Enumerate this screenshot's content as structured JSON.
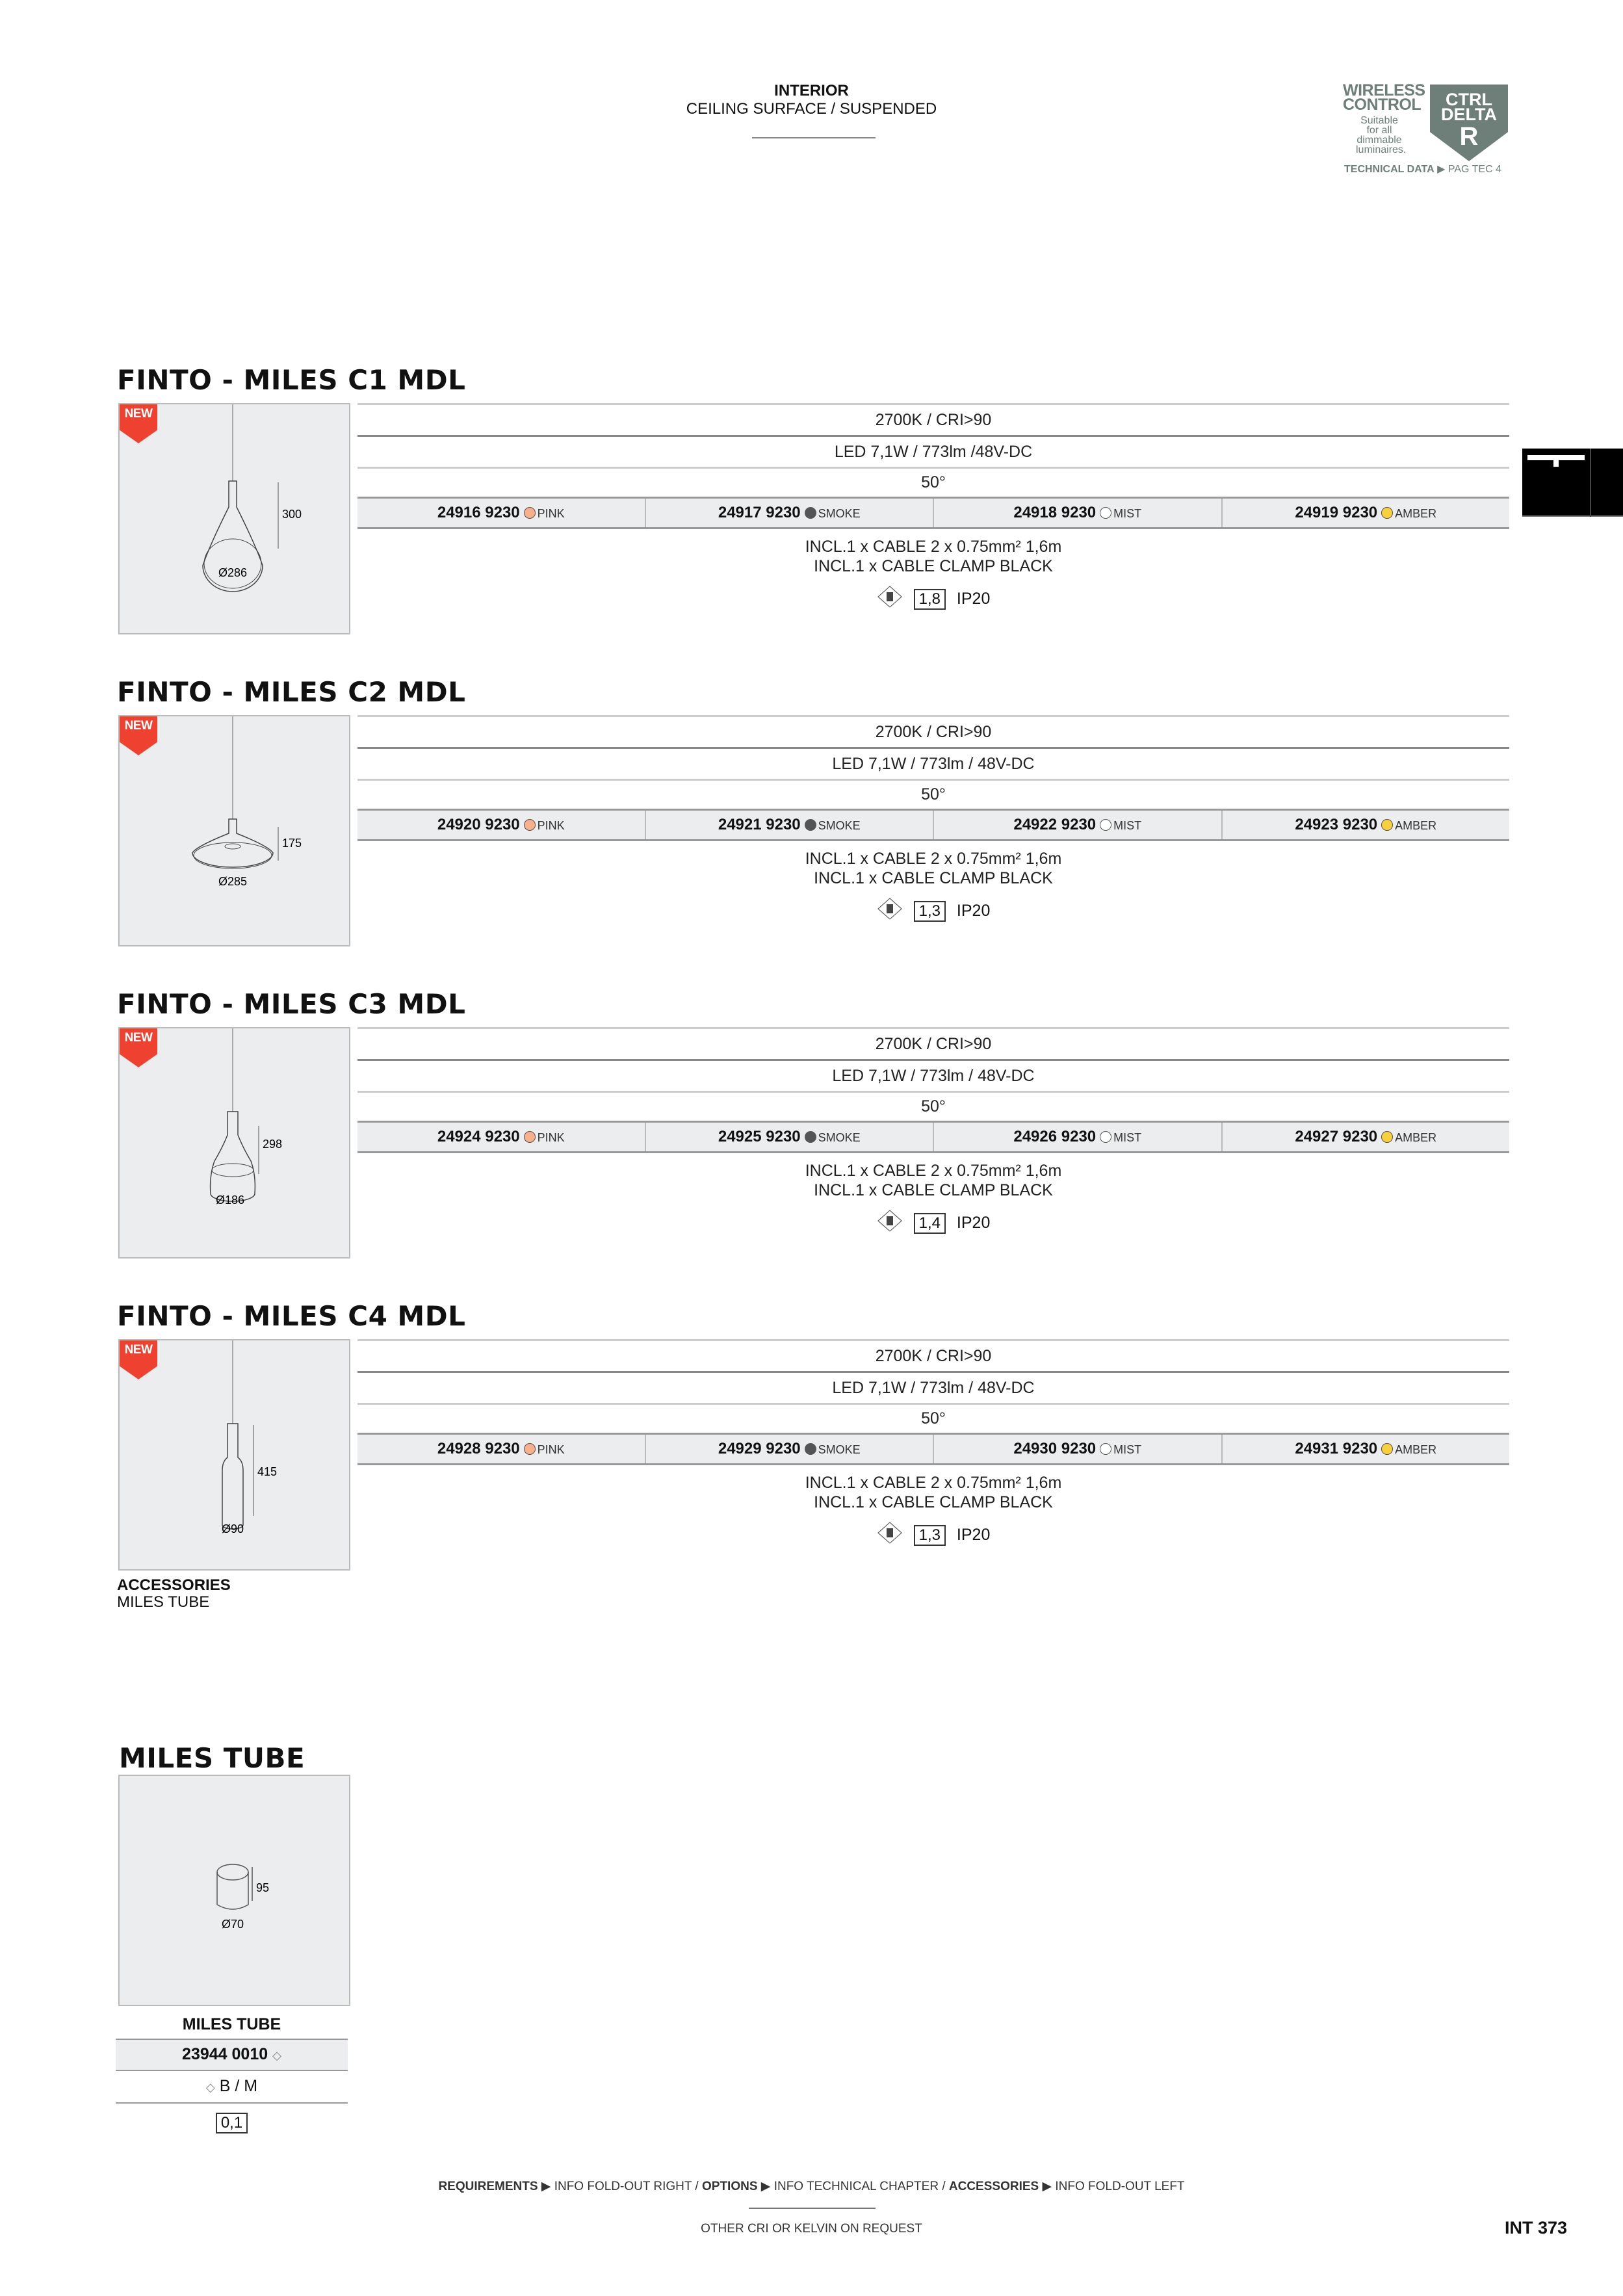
{
  "header": {
    "category": "INTERIOR",
    "subcategory": "CEILING SURFACE / SUSPENDED"
  },
  "logo": {
    "line1": "WIRELESS",
    "line2": "CONTROL",
    "note": "Suitable for all dimmable luminaires.",
    "shield": [
      "CTRL",
      "DELTA",
      "R"
    ],
    "technical": "TECHNICAL DATA",
    "page_ref": "PAG TEC 4",
    "color": "#6d7f78"
  },
  "side_tab_icon": "ceiling-suspended-icon",
  "badge_new": "NEW",
  "colors": {
    "PINK": "#f7b08a",
    "SMOKE": "#555555",
    "MIST": "#ffffff",
    "AMBER": "#f9cf3b",
    "new_badge": "#ef4130"
  },
  "products": [
    {
      "title": "FINTO - MILES C1 MDL",
      "height": "300",
      "diameter": "Ø286",
      "shape": "c1",
      "specs": [
        "2700K / CRI>90",
        "LED 7,1W / 773lm /48V-DC",
        "50°"
      ],
      "codes": [
        {
          "code": "24916 9230",
          "color": "PINK"
        },
        {
          "code": "24917 9230",
          "color": "SMOKE"
        },
        {
          "code": "24918 9230",
          "color": "MIST"
        },
        {
          "code": "24919 9230",
          "color": "AMBER"
        }
      ],
      "incl": [
        "INCL.1 x CABLE 2 x 0.75mm² 1,6m",
        "INCL.1 x CABLE CLAMP BLACK"
      ],
      "class": "III",
      "weight": "1,8",
      "ip": "IP20"
    },
    {
      "title": "FINTO - MILES C2 MDL",
      "height": "175",
      "diameter": "Ø285",
      "shape": "c2",
      "specs": [
        "2700K / CRI>90",
        "LED 7,1W / 773lm / 48V-DC",
        "50°"
      ],
      "codes": [
        {
          "code": "24920 9230",
          "color": "PINK"
        },
        {
          "code": "24921 9230",
          "color": "SMOKE"
        },
        {
          "code": "24922 9230",
          "color": "MIST"
        },
        {
          "code": "24923 9230",
          "color": "AMBER"
        }
      ],
      "incl": [
        "INCL.1 x CABLE 2 x 0.75mm² 1,6m",
        "INCL.1 x CABLE CLAMP BLACK"
      ],
      "class": "III",
      "weight": "1,3",
      "ip": "IP20"
    },
    {
      "title": "FINTO - MILES C3 MDL",
      "height": "298",
      "diameter": "Ø186",
      "shape": "c3",
      "specs": [
        "2700K / CRI>90",
        "LED 7,1W / 773lm / 48V-DC",
        "50°"
      ],
      "codes": [
        {
          "code": "24924 9230",
          "color": "PINK"
        },
        {
          "code": "24925 9230",
          "color": "SMOKE"
        },
        {
          "code": "24926 9230",
          "color": "MIST"
        },
        {
          "code": "24927 9230",
          "color": "AMBER"
        }
      ],
      "incl": [
        "INCL.1 x CABLE 2 x 0.75mm² 1,6m",
        "INCL.1 x CABLE CLAMP BLACK"
      ],
      "class": "III",
      "weight": "1,4",
      "ip": "IP20"
    },
    {
      "title": "FINTO - MILES C4 MDL",
      "height": "415",
      "diameter": "Ø90",
      "shape": "c4",
      "specs": [
        "2700K / CRI>90",
        "LED 7,1W / 773lm / 48V-DC",
        "50°"
      ],
      "codes": [
        {
          "code": "24928 9230",
          "color": "PINK"
        },
        {
          "code": "24929 9230",
          "color": "SMOKE"
        },
        {
          "code": "24930 9230",
          "color": "MIST"
        },
        {
          "code": "24931 9230",
          "color": "AMBER"
        }
      ],
      "incl": [
        "INCL.1 x CABLE 2 x 0.75mm² 1,6m",
        "INCL.1 x CABLE CLAMP BLACK"
      ],
      "class": "III",
      "weight": "1,3",
      "ip": "IP20"
    }
  ],
  "accessories": {
    "label": "ACCESSORIES",
    "item": "MILES TUBE"
  },
  "tube": {
    "title": "MILES TUBE",
    "height": "95",
    "diameter": "Ø70",
    "name": "MILES TUBE",
    "code": "23944 0010",
    "finish": "B / M",
    "weight": "0,1"
  },
  "footer": {
    "req_label": "REQUIREMENTS",
    "req_text": "INFO FOLD-OUT RIGHT /",
    "opt_label": "OPTIONS",
    "opt_text": "INFO TECHNICAL CHAPTER /",
    "acc_label": "ACCESSORIES",
    "acc_text": "INFO FOLD-OUT LEFT",
    "note": "OTHER CRI OR KELVIN ON REQUEST",
    "page": "INT 373"
  }
}
